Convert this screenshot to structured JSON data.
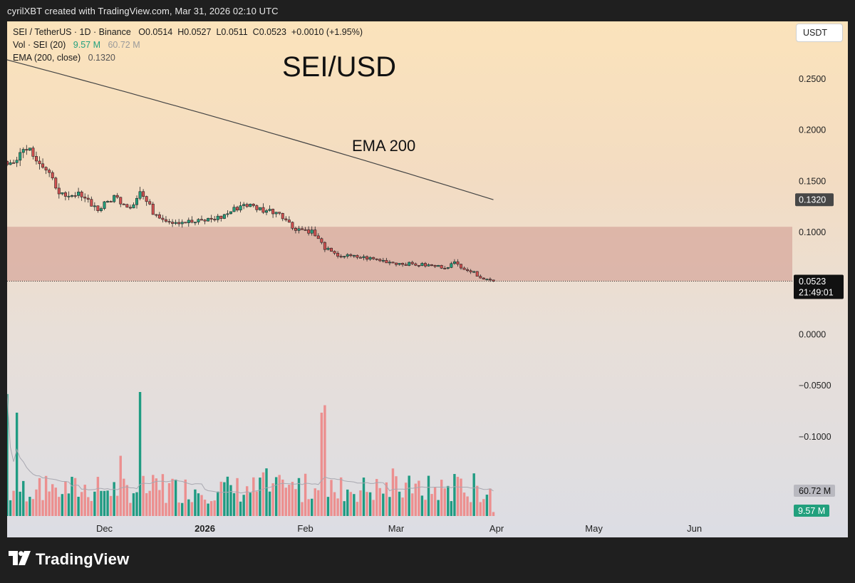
{
  "caption": "cyrilXBT created with TradingView.com, Mar 31, 2026 02:10 UTC",
  "legend": {
    "symbol_line": "SEI / TetherUS · 1D · Binance",
    "open": "O0.0514",
    "high": "H0.0527",
    "low": "L0.0511",
    "close": "C0.0523",
    "change": "+0.0010 (+1.95%)",
    "vol_label": "Vol · SEI (20)",
    "vol_value": "9.57 M",
    "vol_ma": "60.72 M",
    "ema_label": "EMA (200, close)",
    "ema_value": "0.1320"
  },
  "annotations": {
    "title": "SEI/USD",
    "ema_note": "EMA 200"
  },
  "currency_button": "USDT",
  "brand": {
    "icon": "tradingview-logo-icon",
    "name": "TradingView"
  },
  "colors": {
    "up": "#22a07d",
    "down": "#d25050",
    "volume_up": "#1f9b82",
    "volume_down": "#ec8f8f",
    "zone": "#d5a59a",
    "ema": "#444444"
  },
  "chart_data": {
    "type": "candlestick",
    "interval": "1D",
    "x_range": [
      "2025-11-01",
      "2026-06-13"
    ],
    "ylim": [
      -0.15,
      0.3
    ],
    "y_ticks": [
      0.25,
      0.2,
      0.15,
      0.1,
      0.0,
      -0.05,
      -0.1
    ],
    "y_tick_labels": [
      "0.2500",
      "0.2000",
      "0.1500",
      "0.1000",
      "0.0000",
      "−0.0500",
      "−0.1000"
    ],
    "x_ticks": [
      {
        "date": "2025-12-01",
        "label": "Dec",
        "bold": false
      },
      {
        "date": "2026-01-01",
        "label": "2026",
        "bold": true
      },
      {
        "date": "2026-02-01",
        "label": "Feb",
        "bold": false
      },
      {
        "date": "2026-03-01",
        "label": "Mar",
        "bold": false
      },
      {
        "date": "2026-04-01",
        "label": "Apr",
        "bold": false
      },
      {
        "date": "2026-05-01",
        "label": "May",
        "bold": false
      },
      {
        "date": "2026-06-01",
        "label": "Jun",
        "bold": false
      }
    ],
    "close_anchors": [
      [
        "2025-11-01",
        0.165
      ],
      [
        "2025-11-07",
        0.185
      ],
      [
        "2025-11-09",
        0.178
      ],
      [
        "2025-11-14",
        0.155
      ],
      [
        "2025-11-19",
        0.132
      ],
      [
        "2025-11-24",
        0.138
      ],
      [
        "2025-11-29",
        0.122
      ],
      [
        "2025-12-04",
        0.135
      ],
      [
        "2025-12-09",
        0.125
      ],
      [
        "2025-12-12",
        0.14
      ],
      [
        "2025-12-16",
        0.12
      ],
      [
        "2025-12-21",
        0.111
      ],
      [
        "2025-12-29",
        0.11
      ],
      [
        "2026-01-06",
        0.115
      ],
      [
        "2026-01-13",
        0.128
      ],
      [
        "2026-01-19",
        0.122
      ],
      [
        "2026-01-24",
        0.12
      ],
      [
        "2026-01-28",
        0.105
      ],
      [
        "2026-02-03",
        0.101
      ],
      [
        "2026-02-07",
        0.085
      ],
      [
        "2026-02-10",
        0.078
      ],
      [
        "2026-02-20",
        0.075
      ],
      [
        "2026-03-01",
        0.07
      ],
      [
        "2026-03-10",
        0.068
      ],
      [
        "2026-03-16",
        0.066
      ],
      [
        "2026-03-19",
        0.07
      ],
      [
        "2026-03-24",
        0.062
      ],
      [
        "2026-03-28",
        0.055
      ],
      [
        "2026-03-31",
        0.0523
      ]
    ],
    "ema200": {
      "start_date": "2025-11-01",
      "start_value": 0.2688,
      "end_date": "2026-03-31",
      "end_value": 0.132
    },
    "support_zone": {
      "from": 0.0523,
      "to": 0.1055
    },
    "last_price": {
      "value": 0.0523,
      "label": "0.0523",
      "countdown": "21:49:01"
    },
    "ema_price_label": "0.1320",
    "volume": {
      "scale_max_millions": 300,
      "ma_millions": 60.72,
      "current_millions": 9.57,
      "ma_label": "60.72 M",
      "current_label": "9.57 M",
      "peaks": [
        {
          "date": "2025-12-12",
          "millions": 300
        },
        {
          "date": "2026-02-07",
          "millions": 268
        },
        {
          "date": "2026-02-06",
          "millions": 250
        },
        {
          "date": "2025-11-01",
          "millions": 295
        },
        {
          "date": "2025-11-04",
          "millions": 250
        }
      ]
    }
  }
}
